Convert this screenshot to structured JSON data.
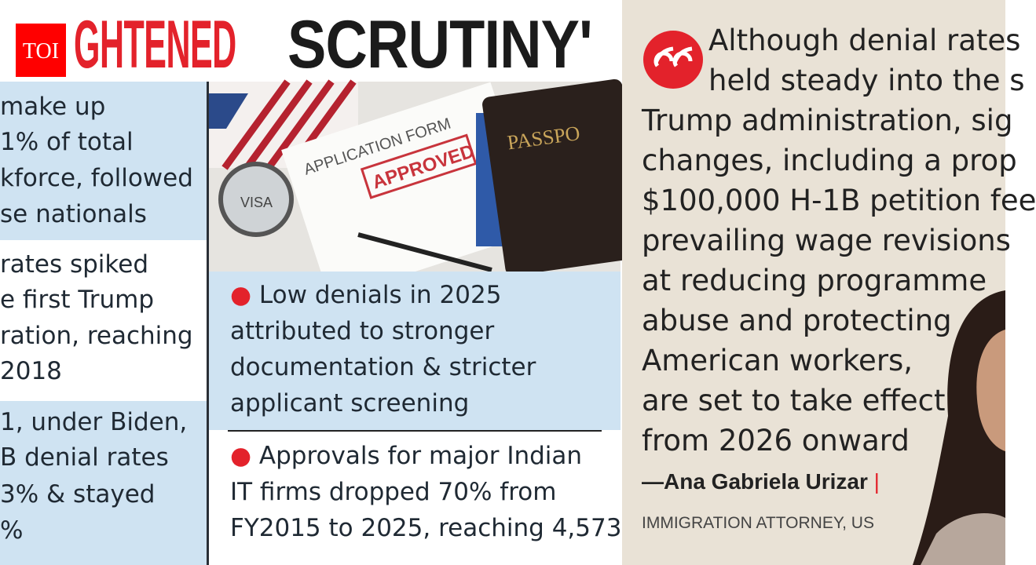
{
  "headline": {
    "red_part": "GHTENED",
    "black_part": "SCRUTINY'"
  },
  "logo": {
    "text": "TOI",
    "color": "#ff0000"
  },
  "left_column": {
    "blocks": [
      {
        "lines": [
          "make up",
          "1% of total",
          "kforce, followed",
          "se nationals"
        ]
      },
      {
        "lines": [
          "rates spiked",
          "e first Trump",
          "ration, reaching",
          "2018"
        ]
      },
      {
        "lines": [
          "1, under Biden,",
          "B denial rates",
          "3% & stayed",
          "%"
        ]
      }
    ]
  },
  "middle_column": {
    "image": {
      "form_title": "APPLICATION FORM",
      "stamp": "APPROVED",
      "passport_label": "PASSPO",
      "visa_label": "VISA"
    },
    "bullets": [
      {
        "lines": [
          "Low denials in 2025",
          "attributed to stronger",
          "documentation & stricter",
          "applicant screening"
        ]
      },
      {
        "lines": [
          "Approvals for major Indian",
          "IT firms dropped 70% from",
          "FY2015 to 2025, reaching 4,573"
        ]
      }
    ],
    "bullet_symbol": "●"
  },
  "quote": {
    "icon": "quote-icon",
    "lines": [
      "Although denial rates",
      "held steady into the s",
      "Trump administration, sig",
      "changes, including a prop",
      "$100,000 H-1B petition fee",
      "prevailing wage revisions",
      "at reducing programme",
      "abuse and protecting",
      "American workers,",
      "are set to take effect",
      "from 2026 onward"
    ],
    "author": "—Ana Gabriela Urizar",
    "separator": "|",
    "author_title": "IMMIGRATION ATTORNEY, US"
  },
  "colors": {
    "accent_red": "#e3222b",
    "panel_blue": "#cfe3f2",
    "quote_bg": "#e9e2d6"
  }
}
